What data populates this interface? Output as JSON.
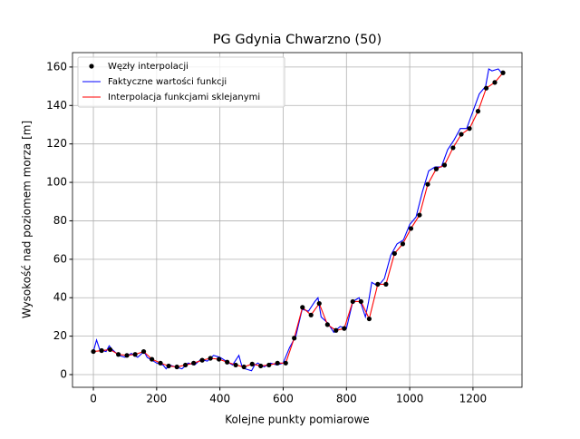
{
  "chart_data": {
    "type": "line",
    "title": "PG Gdynia Chwarzno (50)",
    "xlabel": "Kolejne punkty pomiarowe",
    "ylabel": "Wysokość nad poziomem morza [m]",
    "xlim": [
      -66,
      1355
    ],
    "ylim": [
      -6.6,
      167.5
    ],
    "xticks": [
      0,
      200,
      400,
      600,
      800,
      1000,
      1200
    ],
    "yticks": [
      0,
      20,
      40,
      60,
      80,
      100,
      120,
      140,
      160
    ],
    "grid": true,
    "legend": "upper-left",
    "series": [
      {
        "name": "Węzły interpolacji",
        "color": "#000000",
        "kind": "scatter",
        "x": [
          0,
          26,
          53,
          79,
          106,
          132,
          159,
          185,
          212,
          238,
          264,
          291,
          317,
          344,
          370,
          397,
          423,
          450,
          476,
          502,
          529,
          555,
          582,
          608,
          635,
          661,
          688,
          714,
          740,
          767,
          793,
          820,
          846,
          872,
          899,
          925,
          952,
          978,
          1004,
          1031,
          1057,
          1084,
          1110,
          1137,
          1163,
          1189,
          1216,
          1242,
          1269,
          1295
        ],
        "values": [
          12,
          12.5,
          13,
          10.5,
          10,
          10.5,
          12,
          8,
          6,
          4.5,
          4,
          5,
          6,
          7.5,
          8.5,
          8,
          6.5,
          5,
          4,
          5.5,
          4.5,
          5,
          6,
          6,
          19,
          35,
          31,
          37,
          26,
          23,
          24,
          38,
          38,
          29,
          47,
          47,
          63,
          68,
          76,
          83,
          99,
          107,
          109,
          118,
          125,
          128,
          137,
          149,
          152,
          157
        ]
      },
      {
        "name": "Faktyczne wartości funkcji",
        "color": "#0000ff",
        "kind": "line",
        "x": [
          0,
          10,
          20,
          40,
          50,
          60,
          80,
          100,
          120,
          140,
          160,
          170,
          180,
          200,
          220,
          230,
          240,
          260,
          280,
          300,
          320,
          340,
          360,
          380,
          400,
          420,
          440,
          460,
          470,
          480,
          500,
          510,
          520,
          540,
          560,
          580,
          600,
          620,
          640,
          660,
          680,
          700,
          710,
          720,
          740,
          760,
          780,
          800,
          820,
          840,
          860,
          870,
          880,
          900,
          920,
          940,
          960,
          980,
          1000,
          1020,
          1040,
          1060,
          1080,
          1100,
          1120,
          1140,
          1160,
          1180,
          1200,
          1220,
          1240,
          1250,
          1260,
          1280,
          1290
        ],
        "values": [
          12,
          18,
          13,
          12,
          15,
          13,
          10,
          9,
          11,
          9,
          12,
          9,
          8,
          6,
          5,
          3,
          5,
          4,
          3,
          6,
          5,
          8,
          7,
          10,
          9,
          7,
          5,
          10,
          4,
          3,
          2,
          5,
          6,
          4,
          6,
          5,
          6,
          14,
          20,
          34,
          33,
          38,
          40,
          30,
          27,
          22,
          25,
          24,
          38,
          40,
          30,
          38,
          48,
          46,
          50,
          62,
          68,
          70,
          78,
          82,
          95,
          106,
          108,
          108,
          117,
          122,
          128,
          128,
          137,
          146,
          150,
          159,
          158,
          159,
          157
        ]
      },
      {
        "name": "Interpolacja funkcjami sklejanymi",
        "color": "#ff0000",
        "kind": "line",
        "x": [
          0,
          26,
          53,
          79,
          106,
          132,
          159,
          185,
          212,
          238,
          264,
          291,
          317,
          344,
          370,
          397,
          423,
          450,
          476,
          502,
          529,
          555,
          582,
          608,
          635,
          661,
          688,
          714,
          740,
          767,
          793,
          820,
          846,
          872,
          899,
          925,
          952,
          978,
          1004,
          1031,
          1057,
          1084,
          1110,
          1137,
          1163,
          1189,
          1216,
          1242,
          1269,
          1295
        ],
        "values": [
          12,
          12.5,
          13,
          10.5,
          10,
          10.5,
          12,
          8,
          6,
          4.5,
          4,
          5,
          6,
          7.5,
          8.5,
          8,
          6.5,
          5,
          4,
          5.5,
          4.5,
          5,
          6,
          6,
          19,
          35,
          31,
          37,
          26,
          23,
          24,
          38,
          38,
          29,
          47,
          47,
          63,
          68,
          76,
          83,
          99,
          107,
          109,
          118,
          125,
          128,
          137,
          149,
          152,
          157
        ]
      }
    ]
  }
}
